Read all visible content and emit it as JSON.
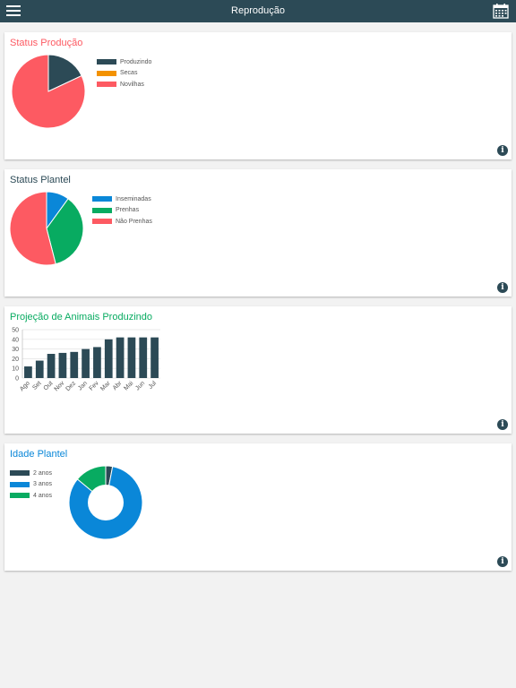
{
  "header": {
    "title": "Reprodução",
    "menu_icon": "menu-icon",
    "calendar_icon": "calendar-icon"
  },
  "colors": {
    "header": "#2c4a56",
    "dark": "#2c4a56",
    "orange": "#f39200",
    "red": "#fd5a62",
    "blue": "#0a87d8",
    "green": "#08ab61"
  },
  "cards": [
    {
      "title": "Status Produção",
      "title_color": "#fd5a62",
      "chart_data": {
        "type": "pie",
        "categories": [
          "Produzindo",
          "Secas",
          "Novilhas"
        ],
        "values": [
          18,
          0,
          82
        ],
        "colors": [
          "#2c4a56",
          "#f39200",
          "#fd5a62"
        ]
      }
    },
    {
      "title": "Status Plantel",
      "title_color": "#2c4a56",
      "chart_data": {
        "type": "pie",
        "categories": [
          "Inseminadas",
          "Prenhas",
          "Não Prenhas"
        ],
        "values": [
          10,
          36,
          54
        ],
        "colors": [
          "#0a87d8",
          "#08ab61",
          "#fd5a62"
        ]
      }
    },
    {
      "title": "Projeção de Animais Produzindo",
      "title_color": "#08ab61",
      "chart_data": {
        "type": "bar",
        "categories": [
          "Ago",
          "Set",
          "Out",
          "Nov",
          "Dez",
          "Jan",
          "Fev",
          "Mar",
          "Abr",
          "Mai",
          "Jun",
          "Jul"
        ],
        "values": [
          12,
          18,
          25,
          26,
          27,
          30,
          32,
          40,
          42,
          42,
          42,
          42
        ],
        "ylim": [
          0,
          50
        ],
        "yticks": [
          "0",
          "10",
          "20",
          "30",
          "40",
          "50"
        ],
        "color": "#2c4a56"
      }
    },
    {
      "title": "Idade Plantel",
      "title_color": "#0a87d8",
      "chart_data": {
        "type": "pie",
        "categories": [
          "2 anos",
          "3 anos",
          "4 anos"
        ],
        "values": [
          3,
          83,
          14
        ],
        "colors": [
          "#2c4a56",
          "#0a87d8",
          "#08ab61"
        ]
      }
    }
  ]
}
